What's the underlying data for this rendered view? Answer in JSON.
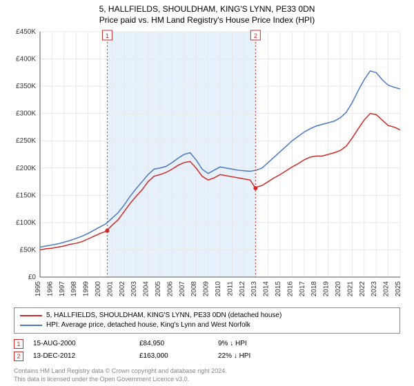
{
  "title": "5, HALLFIELDS, SHOULDHAM, KING'S LYNN, PE33 0DN",
  "subtitle": "Price paid vs. HM Land Registry's House Price Index (HPI)",
  "chart": {
    "type": "line",
    "xlim": [
      1995,
      2025
    ],
    "ylim": [
      0,
      450000
    ],
    "ytick_step": 50000,
    "ytick_prefix": "£",
    "ytick_suffix": "K",
    "xticks": [
      1995,
      1996,
      1997,
      1998,
      1999,
      2000,
      2001,
      2002,
      2003,
      2004,
      2005,
      2006,
      2007,
      2008,
      2009,
      2010,
      2011,
      2012,
      2013,
      2014,
      2015,
      2016,
      2017,
      2018,
      2019,
      2020,
      2021,
      2022,
      2023,
      2024,
      2025
    ],
    "background_color": "#ffffff",
    "grid_color": "#e8e8e8",
    "axis_color": "#555555",
    "tick_fontsize": 10,
    "band": {
      "from": 2000.6,
      "to": 2012.95,
      "fill": "#e6f1fb"
    },
    "line_width": 1.5,
    "marker_radius": 3,
    "vline_color": "#d02828",
    "vline_dash": "2,3"
  },
  "series": [
    {
      "name": "price_paid",
      "color": "#d02828",
      "data": [
        [
          1995,
          50000
        ],
        [
          1995.5,
          52000
        ],
        [
          1996,
          53000
        ],
        [
          1996.5,
          55000
        ],
        [
          1997,
          57000
        ],
        [
          1997.5,
          60000
        ],
        [
          1998,
          62000
        ],
        [
          1998.5,
          65000
        ],
        [
          1999,
          70000
        ],
        [
          1999.5,
          75000
        ],
        [
          2000,
          80000
        ],
        [
          2000.5,
          84000
        ],
        [
          2001,
          95000
        ],
        [
          2001.5,
          105000
        ],
        [
          2002,
          120000
        ],
        [
          2002.5,
          135000
        ],
        [
          2003,
          148000
        ],
        [
          2003.5,
          160000
        ],
        [
          2004,
          175000
        ],
        [
          2004.5,
          185000
        ],
        [
          2005,
          188000
        ],
        [
          2005.5,
          192000
        ],
        [
          2006,
          198000
        ],
        [
          2006.5,
          205000
        ],
        [
          2007,
          210000
        ],
        [
          2007.5,
          212000
        ],
        [
          2008,
          200000
        ],
        [
          2008.5,
          185000
        ],
        [
          2009,
          178000
        ],
        [
          2009.5,
          182000
        ],
        [
          2010,
          188000
        ],
        [
          2010.5,
          186000
        ],
        [
          2011,
          184000
        ],
        [
          2011.5,
          182000
        ],
        [
          2012,
          180000
        ],
        [
          2012.5,
          178000
        ],
        [
          2012.95,
          163000
        ],
        [
          2013,
          165000
        ],
        [
          2013.5,
          168000
        ],
        [
          2014,
          175000
        ],
        [
          2014.5,
          182000
        ],
        [
          2015,
          188000
        ],
        [
          2015.5,
          195000
        ],
        [
          2016,
          202000
        ],
        [
          2016.5,
          208000
        ],
        [
          2017,
          215000
        ],
        [
          2017.5,
          220000
        ],
        [
          2018,
          222000
        ],
        [
          2018.5,
          222000
        ],
        [
          2019,
          225000
        ],
        [
          2019.5,
          228000
        ],
        [
          2020,
          232000
        ],
        [
          2020.5,
          240000
        ],
        [
          2021,
          255000
        ],
        [
          2021.5,
          272000
        ],
        [
          2022,
          288000
        ],
        [
          2022.5,
          300000
        ],
        [
          2023,
          298000
        ],
        [
          2023.5,
          288000
        ],
        [
          2024,
          278000
        ],
        [
          2024.5,
          275000
        ],
        [
          2025,
          270000
        ]
      ]
    },
    {
      "name": "hpi",
      "color": "#4a77c4",
      "data": [
        [
          1995,
          55000
        ],
        [
          1995.5,
          57000
        ],
        [
          1996,
          59000
        ],
        [
          1996.5,
          61000
        ],
        [
          1997,
          64000
        ],
        [
          1997.5,
          67000
        ],
        [
          1998,
          71000
        ],
        [
          1998.5,
          75000
        ],
        [
          1999,
          80000
        ],
        [
          1999.5,
          86000
        ],
        [
          2000,
          92000
        ],
        [
          2000.5,
          98000
        ],
        [
          2001,
          108000
        ],
        [
          2001.5,
          118000
        ],
        [
          2002,
          132000
        ],
        [
          2002.5,
          148000
        ],
        [
          2003,
          162000
        ],
        [
          2003.5,
          175000
        ],
        [
          2004,
          188000
        ],
        [
          2004.5,
          198000
        ],
        [
          2005,
          200000
        ],
        [
          2005.5,
          203000
        ],
        [
          2006,
          210000
        ],
        [
          2006.5,
          218000
        ],
        [
          2007,
          225000
        ],
        [
          2007.5,
          228000
        ],
        [
          2008,
          215000
        ],
        [
          2008.5,
          198000
        ],
        [
          2009,
          190000
        ],
        [
          2009.5,
          196000
        ],
        [
          2010,
          202000
        ],
        [
          2010.5,
          200000
        ],
        [
          2011,
          198000
        ],
        [
          2011.5,
          196000
        ],
        [
          2012,
          195000
        ],
        [
          2012.5,
          194000
        ],
        [
          2013,
          196000
        ],
        [
          2013.5,
          200000
        ],
        [
          2014,
          210000
        ],
        [
          2014.5,
          220000
        ],
        [
          2015,
          230000
        ],
        [
          2015.5,
          240000
        ],
        [
          2016,
          250000
        ],
        [
          2016.5,
          258000
        ],
        [
          2017,
          266000
        ],
        [
          2017.5,
          272000
        ],
        [
          2018,
          277000
        ],
        [
          2018.5,
          280000
        ],
        [
          2019,
          283000
        ],
        [
          2019.5,
          286000
        ],
        [
          2020,
          292000
        ],
        [
          2020.5,
          302000
        ],
        [
          2021,
          320000
        ],
        [
          2021.5,
          342000
        ],
        [
          2022,
          362000
        ],
        [
          2022.5,
          378000
        ],
        [
          2023,
          375000
        ],
        [
          2023.5,
          362000
        ],
        [
          2024,
          352000
        ],
        [
          2024.5,
          348000
        ],
        [
          2025,
          345000
        ]
      ]
    }
  ],
  "markers": [
    {
      "id": "1",
      "x": 2000.6,
      "y": 84950,
      "date": "15-AUG-2000",
      "price": "£84,950",
      "pct": "9% ↓ HPI"
    },
    {
      "id": "2",
      "x": 2012.95,
      "y": 163000,
      "date": "13-DEC-2012",
      "price": "£163,000",
      "pct": "22% ↓ HPI"
    }
  ],
  "legend": [
    {
      "color": "#d02828",
      "label": "5, HALLFIELDS, SHOULDHAM, KING'S LYNN, PE33 0DN (detached house)"
    },
    {
      "color": "#4a77c4",
      "label": "HPI: Average price, detached house, King's Lynn and West Norfolk"
    }
  ],
  "footnote": [
    "Contains HM Land Registry data © Crown copyright and database right 2024.",
    "This data is licensed under the Open Government Licence v3.0."
  ]
}
